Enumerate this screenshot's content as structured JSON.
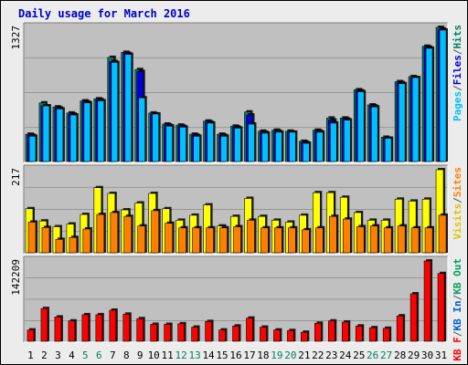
{
  "chart_data": {
    "type": "bar",
    "title": "Daily usage for March 2016",
    "days": [
      "1",
      "2",
      "3",
      "4",
      "5",
      "6",
      "7",
      "8",
      "9",
      "10",
      "11",
      "12",
      "13",
      "14",
      "15",
      "16",
      "17",
      "18",
      "19",
      "20",
      "21",
      "22",
      "23",
      "24",
      "25",
      "26",
      "27",
      "28",
      "29",
      "30",
      "31"
    ],
    "weekend_days": [
      "5",
      "6",
      "12",
      "13",
      "19",
      "20",
      "26",
      "27"
    ],
    "colors": {
      "title": "#0000cc",
      "hits": "#00805f",
      "files": "#0000e0",
      "pages": "#00c0ff",
      "visits": "#ffff00",
      "sites": "#ff8000",
      "kbin": "#0060d0",
      "kbout": "#00a060",
      "kbf": "#ff0000",
      "plot_bg": "#c0c0c0",
      "weekday_label": "#000000",
      "weekend_label": "#00805f"
    },
    "panels": [
      {
        "id": "top",
        "max_label": "1327",
        "ymax": 1327,
        "legend": [
          "Pages",
          "/",
          "Files",
          "/",
          "Hits"
        ],
        "legend_colors": [
          "#00c0ff",
          "#555555",
          "#0000e0",
          "#555555",
          "#00805f"
        ],
        "series": [
          {
            "name": "Hits",
            "values": [
              270,
              580,
              540,
              480,
              600,
              620,
              1030,
              1080,
              910,
              480,
              370,
              360,
              270,
              400,
              270,
              350,
              490,
              300,
              310,
              300,
              200,
              310,
              430,
              430,
              710,
              560,
              240,
              790,
              840,
              1140,
              1327
            ]
          },
          {
            "name": "Files",
            "values": [
              260,
              550,
              530,
              470,
              590,
              610,
              990,
              1070,
              890,
              470,
              360,
              350,
              260,
              390,
              260,
              340,
              460,
              290,
              300,
              290,
              190,
              300,
              410,
              420,
              700,
              550,
              230,
              780,
              830,
              1130,
              1310
            ]
          },
          {
            "name": "Pages",
            "values": [
              250,
              550,
              520,
              460,
              580,
              600,
              980,
              1060,
              630,
              470,
              350,
              340,
              250,
              380,
              250,
              330,
              370,
              280,
              290,
              290,
              180,
              290,
              380,
              410,
              690,
              540,
              230,
              770,
              830,
              1120,
              1300
            ]
          }
        ]
      },
      {
        "id": "mid",
        "max_label": "217",
        "ymax": 217,
        "legend": [
          "Visits",
          "/",
          "Sites"
        ],
        "legend_colors": [
          "#e0c000",
          "#555555",
          "#ff8000"
        ],
        "series": [
          {
            "name": "Visits",
            "values": [
              115,
              83,
              68,
              75,
              100,
              170,
              155,
              112,
              130,
              155,
              115,
              85,
              98,
              125,
              70,
              95,
              142,
              95,
              85,
              80,
              98,
              157,
              157,
              145,
              105,
              85,
              85,
              140,
              135,
              140,
              217
            ]
          },
          {
            "name": "Sites",
            "values": [
              80,
              66,
              35,
              40,
              62,
              100,
              105,
              95,
              70,
              110,
              77,
              65,
              65,
              65,
              65,
              68,
              85,
              65,
              65,
              65,
              60,
              65,
              95,
              88,
              68,
              70,
              65,
              70,
              65,
              65,
              98
            ]
          }
        ]
      },
      {
        "id": "bot",
        "max_label": "142209",
        "ymax": 142209,
        "legend": [
          "KB F",
          "/",
          "KB In",
          "/",
          "KB Out"
        ],
        "legend_colors": [
          "#ff0000",
          "#555555",
          "#0060d0",
          "#555555",
          "#00a060"
        ],
        "series": [
          {
            "name": "KB F",
            "values": [
              20000,
              58000,
              43000,
              36000,
              47000,
              47000,
              55000,
              48000,
              40000,
              30000,
              30000,
              31000,
              25000,
              35000,
              20000,
              27000,
              41000,
              25000,
              20000,
              19000,
              16000,
              32000,
              36000,
              34000,
              27000,
              24000,
              23000,
              45000,
              84000,
              142209,
              120000
            ]
          }
        ]
      }
    ]
  }
}
